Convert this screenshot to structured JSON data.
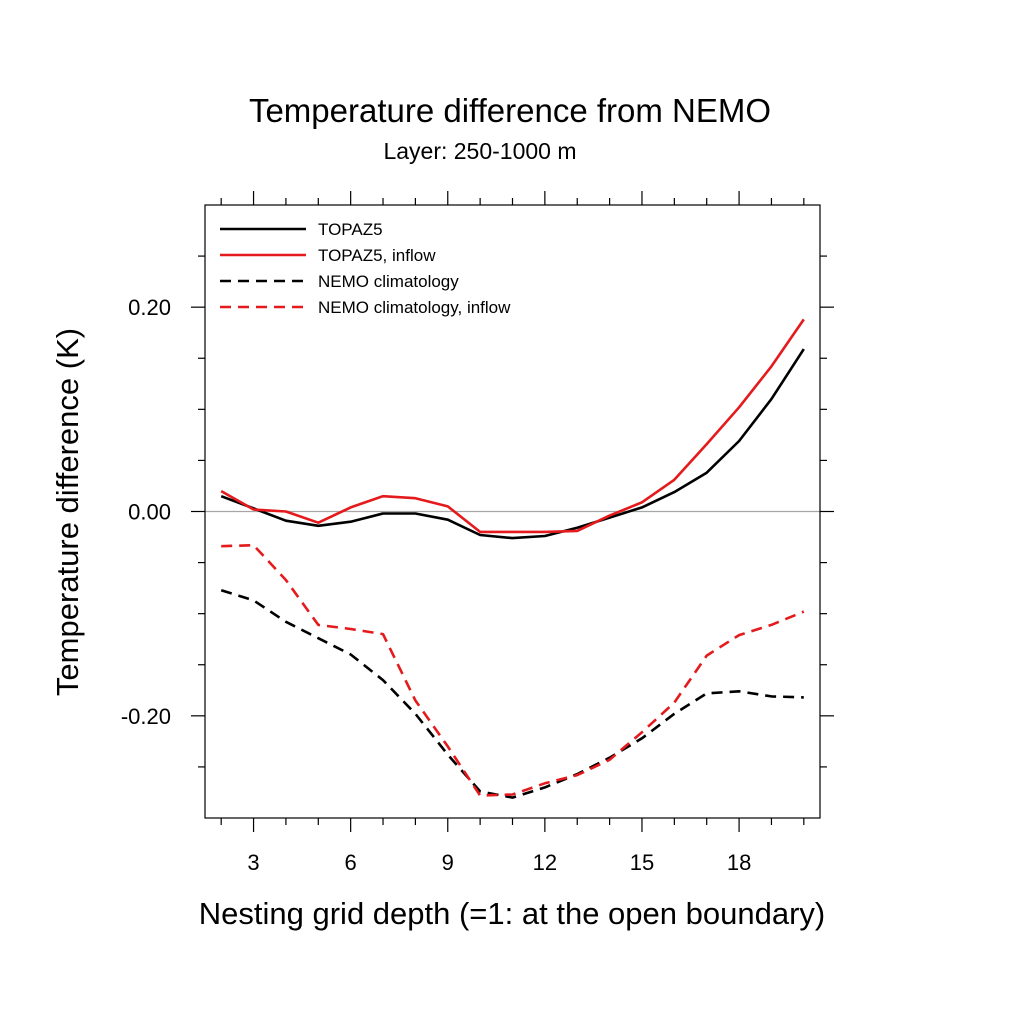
{
  "chart_data": {
    "type": "line",
    "title": "Temperature difference from NEMO",
    "subtitle": "Layer: 250-1000 m",
    "xlabel": "Nesting grid depth (=1: at the open boundary)",
    "ylabel": "Temperature difference (K)",
    "xlim": [
      1.5,
      20.5
    ],
    "ylim": [
      -0.3,
      0.3
    ],
    "x_ticks": [
      3,
      6,
      9,
      12,
      15,
      18
    ],
    "x_tick_labels": [
      "3",
      "6",
      "9",
      "12",
      "15",
      "18"
    ],
    "y_ticks": [
      -0.2,
      0.0,
      0.2
    ],
    "y_tick_labels": [
      "-0.20",
      "0.00",
      "0.20"
    ],
    "zero_line": true,
    "grid": false,
    "legend_position": "top-left",
    "x": [
      2,
      3,
      4,
      5,
      6,
      7,
      8,
      9,
      10,
      11,
      12,
      13,
      14,
      15,
      16,
      17,
      18,
      19,
      20
    ],
    "series": [
      {
        "name": "TOPAZ5",
        "color": "#000000",
        "dash": "solid",
        "values": [
          0.015,
          0.003,
          -0.009,
          -0.014,
          -0.01,
          -0.002,
          -0.002,
          -0.008,
          -0.023,
          -0.026,
          -0.024,
          -0.016,
          -0.006,
          0.004,
          0.019,
          0.038,
          0.069,
          0.11,
          0.159
        ]
      },
      {
        "name": "TOPAZ5, inflow",
        "color": "#e41a1c",
        "dash": "solid",
        "values": [
          0.02,
          0.002,
          0.0,
          -0.011,
          0.004,
          0.015,
          0.013,
          0.005,
          -0.02,
          -0.02,
          -0.02,
          -0.019,
          -0.004,
          0.009,
          0.031,
          0.066,
          0.102,
          0.142,
          0.188
        ]
      },
      {
        "name": "NEMO climatology",
        "color": "#000000",
        "dash": "dashed",
        "values": [
          -0.077,
          -0.087,
          -0.108,
          -0.124,
          -0.14,
          -0.165,
          -0.198,
          -0.238,
          -0.274,
          -0.28,
          -0.27,
          -0.257,
          -0.241,
          -0.222,
          -0.198,
          -0.178,
          -0.176,
          -0.181,
          -0.182
        ]
      },
      {
        "name": "NEMO climatology, inflow",
        "color": "#e41a1c",
        "dash": "dashed",
        "values": [
          -0.034,
          -0.033,
          -0.067,
          -0.111,
          -0.115,
          -0.12,
          -0.185,
          -0.23,
          -0.278,
          -0.277,
          -0.266,
          -0.258,
          -0.243,
          -0.216,
          -0.187,
          -0.141,
          -0.121,
          -0.111,
          -0.098
        ]
      }
    ]
  }
}
